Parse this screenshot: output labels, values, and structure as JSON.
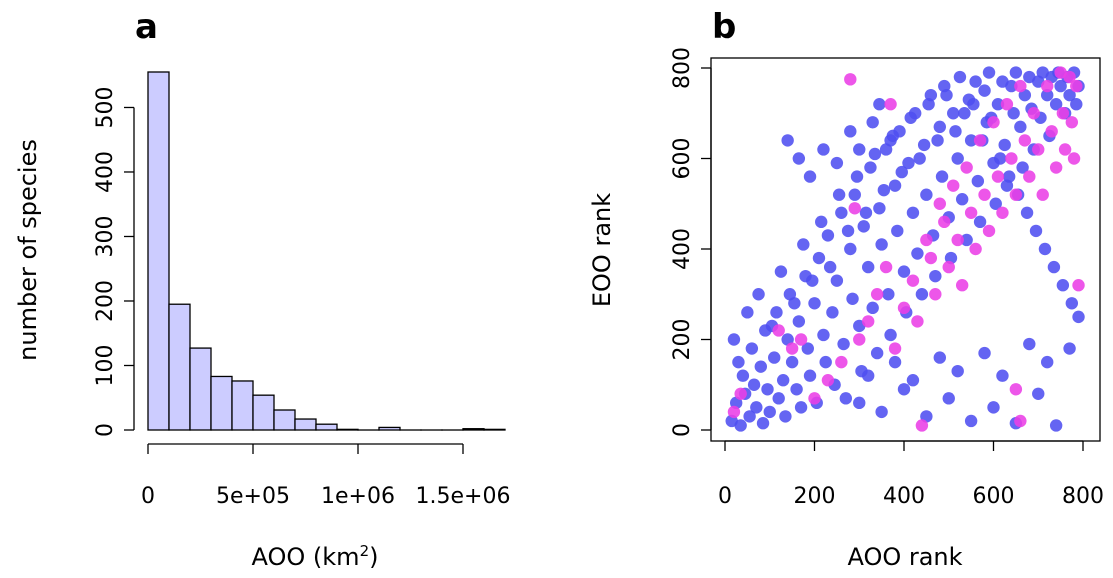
{
  "colors": {
    "bar_fill": "#ccccff",
    "pt_main": "#4f4ff0",
    "pt_highlight": "#ea3fe6"
  },
  "panels": {
    "a": {
      "label": "a"
    },
    "b": {
      "label": "b"
    }
  },
  "chart_data": [
    {
      "type": "bar",
      "panel": "a",
      "histogram": true,
      "bin_width": 100000,
      "bin_edges": [
        0,
        100000,
        200000,
        300000,
        400000,
        500000,
        600000,
        700000,
        800000,
        900000,
        1000000,
        1100000,
        1200000,
        1300000,
        1400000,
        1500000,
        1600000,
        1700000
      ],
      "values": [
        555,
        195,
        127,
        83,
        76,
        54,
        31,
        17,
        9,
        1,
        0,
        4,
        0,
        0,
        0,
        2,
        1
      ],
      "xlabel": "AOO (km",
      "xlabel_sup": "2",
      "xlabel_close": ")",
      "ylabel": "number of species",
      "xlim": [
        0,
        1700000
      ],
      "ylim": [
        0,
        555
      ],
      "xticks": [
        0,
        500000,
        1000000,
        1500000
      ],
      "xtick_labels": [
        "0",
        "5e+05",
        "1e+06",
        "1.5e+06"
      ],
      "yticks": [
        0,
        100,
        200,
        300,
        400,
        500
      ],
      "ytick_labels": [
        "0",
        "100",
        "200",
        "300",
        "400",
        "500"
      ]
    },
    {
      "type": "scatter",
      "panel": "b",
      "xlabel": "AOO rank",
      "ylabel": "EOO rank",
      "xlim": [
        0,
        800
      ],
      "ylim": [
        0,
        800
      ],
      "xticks": [
        0,
        200,
        400,
        600,
        800
      ],
      "xtick_labels": [
        "0",
        "200",
        "400",
        "600",
        "800"
      ],
      "yticks": [
        0,
        200,
        400,
        600,
        800
      ],
      "ytick_labels": [
        "0",
        "200",
        "400",
        "600",
        "800"
      ],
      "series": [
        {
          "color": "#4f4ff0",
          "points": [
            [
              15,
              20
            ],
            [
              25,
              60
            ],
            [
              35,
              10
            ],
            [
              40,
              120
            ],
            [
              45,
              80
            ],
            [
              55,
              30
            ],
            [
              60,
              180
            ],
            [
              65,
              100
            ],
            [
              70,
              50
            ],
            [
              80,
              140
            ],
            [
              85,
              15
            ],
            [
              90,
              220
            ],
            [
              95,
              90
            ],
            [
              100,
              40
            ],
            [
              110,
              160
            ],
            [
              115,
              260
            ],
            [
              120,
              70
            ],
            [
              130,
              110
            ],
            [
              135,
              30
            ],
            [
              140,
              200
            ],
            [
              145,
              300
            ],
            [
              150,
              150
            ],
            [
              160,
              90
            ],
            [
              165,
              240
            ],
            [
              170,
              50
            ],
            [
              180,
              340
            ],
            [
              185,
              180
            ],
            [
              190,
              120
            ],
            [
              200,
              280
            ],
            [
              205,
              60
            ],
            [
              210,
              380
            ],
            [
              220,
              210
            ],
            [
              225,
              150
            ],
            [
              230,
              430
            ],
            [
              240,
              260
            ],
            [
              245,
              100
            ],
            [
              250,
              330
            ],
            [
              260,
              480
            ],
            [
              265,
              190
            ],
            [
              270,
              70
            ],
            [
              280,
              400
            ],
            [
              285,
              290
            ],
            [
              290,
              520
            ],
            [
              300,
              230
            ],
            [
              305,
              130
            ],
            [
              310,
              450
            ],
            [
              320,
              360
            ],
            [
              325,
              580
            ],
            [
              330,
              270
            ],
            [
              340,
              170
            ],
            [
              345,
              490
            ],
            [
              350,
              410
            ],
            [
              360,
              620
            ],
            [
              365,
              300
            ],
            [
              370,
              210
            ],
            [
              380,
              540
            ],
            [
              385,
              440
            ],
            [
              390,
              660
            ],
            [
              400,
              350
            ],
            [
              405,
              260
            ],
            [
              410,
              590
            ],
            [
              420,
              480
            ],
            [
              425,
              700
            ],
            [
              430,
              390
            ],
            [
              440,
              300
            ],
            [
              445,
              630
            ],
            [
              450,
              520
            ],
            [
              460,
              740
            ],
            [
              465,
              430
            ],
            [
              470,
              340
            ],
            [
              480,
              670
            ],
            [
              485,
              560
            ],
            [
              490,
              760
            ],
            [
              500,
              470
            ],
            [
              505,
              380
            ],
            [
              510,
              700
            ],
            [
              520,
              600
            ],
            [
              525,
              780
            ],
            [
              530,
              510
            ],
            [
              540,
              420
            ],
            [
              545,
              730
            ],
            [
              550,
              640
            ],
            [
              560,
              770
            ],
            [
              565,
              550
            ],
            [
              570,
              460
            ],
            [
              580,
              750
            ],
            [
              585,
              680
            ],
            [
              590,
              790
            ],
            [
              600,
              590
            ],
            [
              605,
              500
            ],
            [
              610,
              720
            ],
            [
              620,
              770
            ],
            [
              625,
              630
            ],
            [
              630,
              540
            ],
            [
              640,
              760
            ],
            [
              645,
              700
            ],
            [
              650,
              790
            ],
            [
              660,
              670
            ],
            [
              665,
              580
            ],
            [
              670,
              740
            ],
            [
              680,
              780
            ],
            [
              685,
              710
            ],
            [
              690,
              620
            ],
            [
              700,
              770
            ],
            [
              705,
              690
            ],
            [
              710,
              790
            ],
            [
              720,
              740
            ],
            [
              725,
              650
            ],
            [
              730,
              780
            ],
            [
              740,
              720
            ],
            [
              745,
              790
            ],
            [
              750,
              760
            ],
            [
              760,
              700
            ],
            [
              765,
              780
            ],
            [
              770,
              740
            ],
            [
              780,
              790
            ],
            [
              785,
              720
            ],
            [
              790,
              760
            ],
            [
              20,
              200
            ],
            [
              30,
              150
            ],
            [
              50,
              260
            ],
            [
              75,
              300
            ],
            [
              105,
              230
            ],
            [
              125,
              350
            ],
            [
              155,
              280
            ],
            [
              175,
              410
            ],
            [
              195,
              330
            ],
            [
              215,
              460
            ],
            [
              235,
              360
            ],
            [
              255,
              520
            ],
            [
              275,
              440
            ],
            [
              295,
              560
            ],
            [
              315,
              480
            ],
            [
              335,
              610
            ],
            [
              355,
              530
            ],
            [
              375,
              650
            ],
            [
              395,
              570
            ],
            [
              415,
              690
            ],
            [
              435,
              600
            ],
            [
              455,
              720
            ],
            [
              475,
              640
            ],
            [
              495,
              740
            ],
            [
              515,
              660
            ],
            [
              535,
              700
            ],
            [
              555,
              720
            ],
            [
              575,
              640
            ],
            [
              595,
              690
            ],
            [
              615,
              600
            ],
            [
              635,
              560
            ],
            [
              655,
              520
            ],
            [
              675,
              480
            ],
            [
              695,
              440
            ],
            [
              715,
              400
            ],
            [
              735,
              360
            ],
            [
              755,
              320
            ],
            [
              775,
              280
            ],
            [
              790,
              250
            ],
            [
              300,
              60
            ],
            [
              350,
              40
            ],
            [
              400,
              90
            ],
            [
              450,
              30
            ],
            [
              500,
              70
            ],
            [
              550,
              20
            ],
            [
              600,
              50
            ],
            [
              650,
              15
            ],
            [
              700,
              80
            ],
            [
              740,
              10
            ],
            [
              320,
              120
            ],
            [
              380,
              150
            ],
            [
              420,
              110
            ],
            [
              480,
              160
            ],
            [
              520,
              130
            ],
            [
              580,
              170
            ],
            [
              620,
              120
            ],
            [
              680,
              190
            ],
            [
              720,
              150
            ],
            [
              770,
              180
            ],
            [
              140,
              640
            ],
            [
              165,
              600
            ],
            [
              190,
              560
            ],
            [
              220,
              620
            ],
            [
              250,
              590
            ],
            [
              280,
              660
            ],
            [
              300,
              620
            ],
            [
              330,
              680
            ],
            [
              345,
              720
            ],
            [
              370,
              640
            ]
          ]
        },
        {
          "color": "#ea3fe6",
          "points": [
            [
              20,
              40
            ],
            [
              35,
              80
            ],
            [
              120,
              220
            ],
            [
              150,
              180
            ],
            [
              170,
              200
            ],
            [
              200,
              70
            ],
            [
              230,
              110
            ],
            [
              260,
              150
            ],
            [
              280,
              775
            ],
            [
              290,
              490
            ],
            [
              300,
              200
            ],
            [
              320,
              240
            ],
            [
              340,
              300
            ],
            [
              360,
              360
            ],
            [
              370,
              720
            ],
            [
              380,
              180
            ],
            [
              400,
              270
            ],
            [
              420,
              330
            ],
            [
              430,
              240
            ],
            [
              440,
              10
            ],
            [
              450,
              420
            ],
            [
              460,
              380
            ],
            [
              470,
              300
            ],
            [
              480,
              500
            ],
            [
              490,
              460
            ],
            [
              500,
              360
            ],
            [
              510,
              540
            ],
            [
              520,
              420
            ],
            [
              530,
              320
            ],
            [
              540,
              580
            ],
            [
              550,
              480
            ],
            [
              560,
              400
            ],
            [
              570,
              640
            ],
            [
              580,
              520
            ],
            [
              590,
              440
            ],
            [
              600,
              680
            ],
            [
              610,
              560
            ],
            [
              620,
              480
            ],
            [
              630,
              720
            ],
            [
              640,
              600
            ],
            [
              650,
              520
            ],
            [
              660,
              760
            ],
            [
              670,
              640
            ],
            [
              680,
              560
            ],
            [
              690,
              700
            ],
            [
              700,
              620
            ],
            [
              710,
              520
            ],
            [
              720,
              760
            ],
            [
              730,
              660
            ],
            [
              740,
              580
            ],
            [
              750,
              790
            ],
            [
              755,
              700
            ],
            [
              760,
              620
            ],
            [
              770,
              780
            ],
            [
              775,
              680
            ],
            [
              780,
              600
            ],
            [
              785,
              760
            ],
            [
              790,
              320
            ],
            [
              650,
              90
            ],
            [
              660,
              20
            ]
          ]
        }
      ]
    }
  ]
}
